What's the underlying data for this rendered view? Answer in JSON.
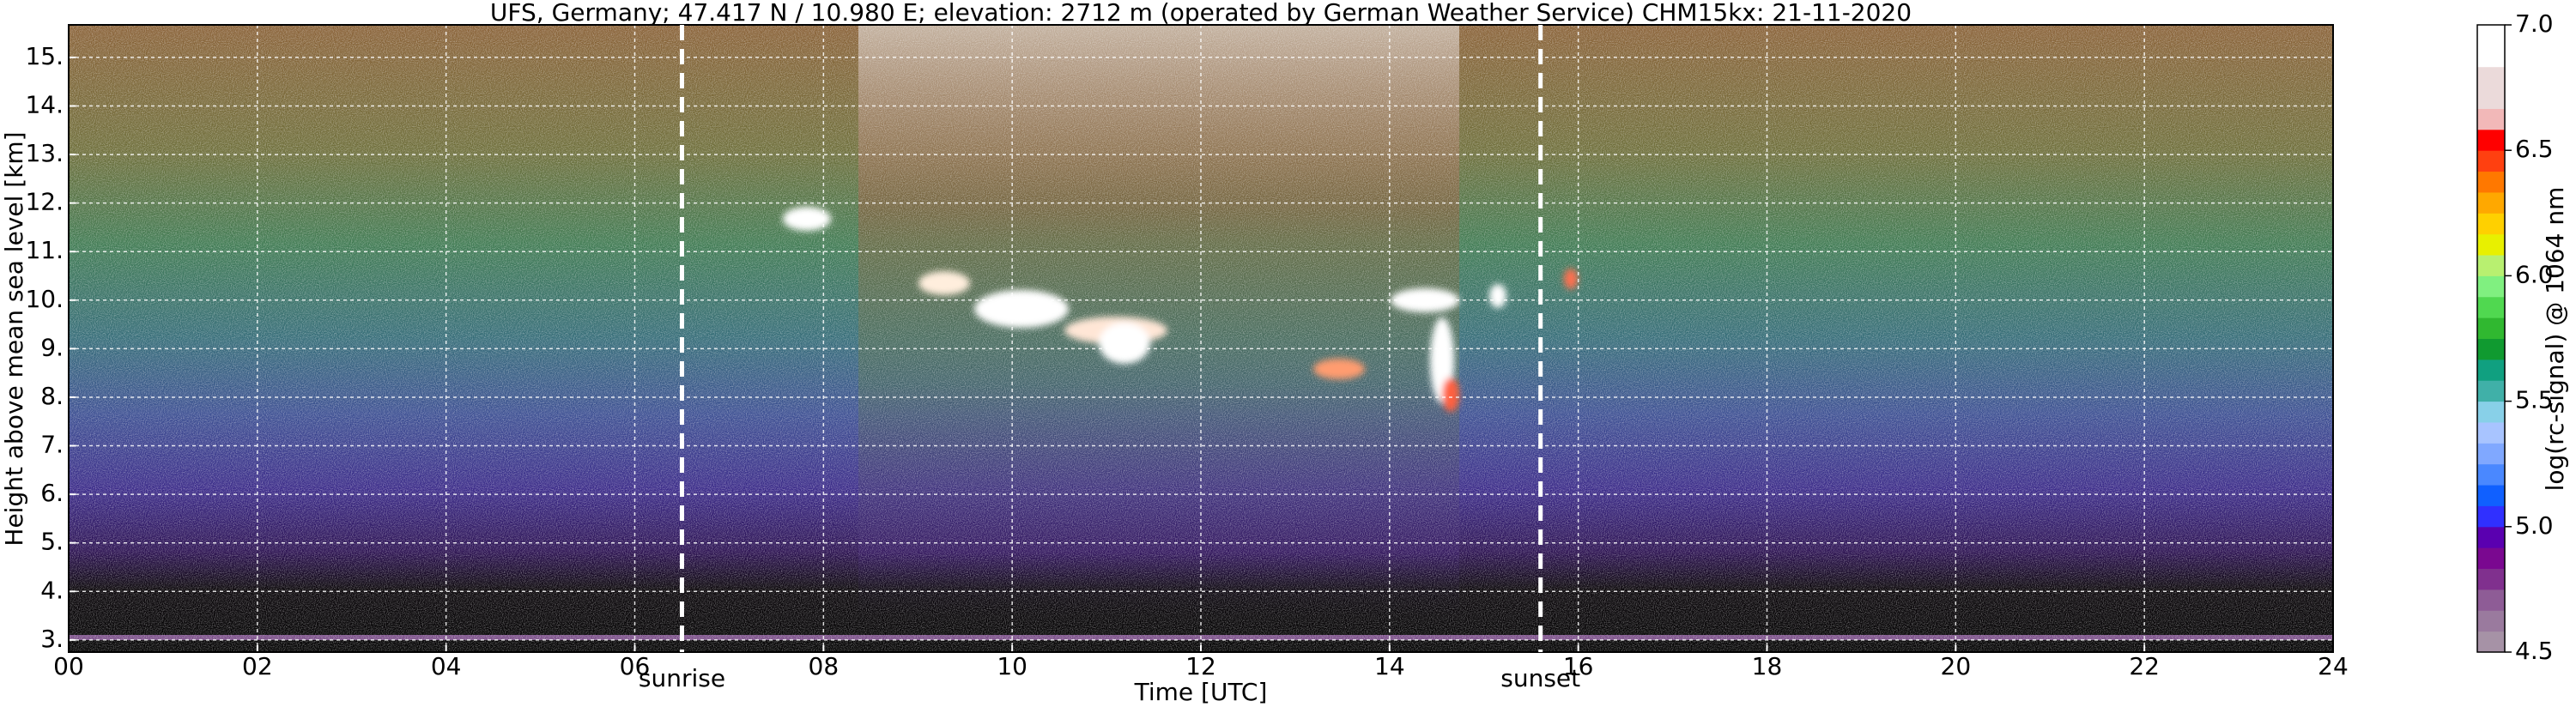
{
  "chart_data": {
    "type": "heatmap",
    "title": "UFS, Germany; 47.417 N / 10.980 E; elevation: 2712 m  (operated by German Weather Service)    CHM15kx: 21-11-2020",
    "x_label": "Time [UTC]",
    "y_label": "Height above mean sea level [km]",
    "xlim": [
      0,
      24
    ],
    "xticks": [
      {
        "value": 0,
        "label": "00"
      },
      {
        "value": 2,
        "label": "02"
      },
      {
        "value": 4,
        "label": "04"
      },
      {
        "value": 6,
        "label": "06"
      },
      {
        "value": 8,
        "label": "08"
      },
      {
        "value": 10,
        "label": "10"
      },
      {
        "value": 12,
        "label": "12"
      },
      {
        "value": 14,
        "label": "14"
      },
      {
        "value": 16,
        "label": "16"
      },
      {
        "value": 18,
        "label": "18"
      },
      {
        "value": 20,
        "label": "20"
      },
      {
        "value": 22,
        "label": "22"
      },
      {
        "value": 24,
        "label": "24"
      }
    ],
    "ylim": [
      2.75,
      15.67
    ],
    "yticks": [
      {
        "value": 3,
        "label": "3."
      },
      {
        "value": 4,
        "label": "4."
      },
      {
        "value": 5,
        "label": "5."
      },
      {
        "value": 6,
        "label": "6."
      },
      {
        "value": 7,
        "label": "7."
      },
      {
        "value": 8,
        "label": "8."
      },
      {
        "value": 9,
        "label": "9."
      },
      {
        "value": 10,
        "label": "10."
      },
      {
        "value": 11,
        "label": "11."
      },
      {
        "value": 12,
        "label": "12."
      },
      {
        "value": 13,
        "label": "13."
      },
      {
        "value": 14,
        "label": "14."
      },
      {
        "value": 15,
        "label": "15."
      }
    ],
    "grid": true,
    "annotations": [
      {
        "text": "sunrise",
        "x": 6.5
      },
      {
        "text": "sunset",
        "x": 15.6
      }
    ],
    "colorbar": {
      "label": "log(rc-signal) @ 1064 nm",
      "lim": [
        4.5,
        7.0
      ],
      "ticks": [
        4.5,
        {
          "value": 5.0,
          "label": "5.0"
        },
        5.5,
        {
          "value": 6.0,
          "label": "6.0"
        },
        6.5,
        {
          "value": 7.0,
          "label": "7.0"
        }
      ],
      "colors": [
        "#a692a6",
        "#9a7a9e",
        "#8e5c96",
        "#80308e",
        "#7a0890",
        "#5a00b0",
        "#3030ff",
        "#1060ff",
        "#4a88ff",
        "#80a8ff",
        "#a8c4ff",
        "#88d0e8",
        "#40b0a8",
        "#10a080",
        "#109a30",
        "#30b830",
        "#50d850",
        "#80f080",
        "#b8f070",
        "#e8f000",
        "#ffd000",
        "#ffa800",
        "#ff7800",
        "#ff4010",
        "#ff0000",
        "#f2b8b8",
        "#ebdada",
        "#ebdada",
        "#ffffff",
        "#ffffff"
      ]
    }
  }
}
